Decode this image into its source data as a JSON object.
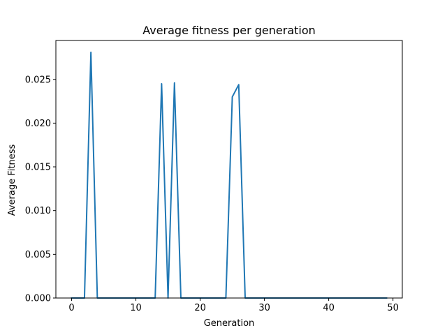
{
  "chart_data": {
    "type": "line",
    "title": "Average fitness per generation",
    "xlabel": "Generation",
    "ylabel": "Average Fitness",
    "xlim": [
      -2.45,
      51.45
    ],
    "ylim": [
      0,
      0.02945
    ],
    "xticks": [
      0,
      10,
      20,
      30,
      40,
      50
    ],
    "xtick_labels": [
      "0",
      "10",
      "20",
      "30",
      "40",
      "50"
    ],
    "yticks": [
      0,
      0.005,
      0.01,
      0.015,
      0.02,
      0.025
    ],
    "ytick_labels": [
      "0.000",
      "0.005",
      "0.010",
      "0.015",
      "0.020",
      "0.025"
    ],
    "grid": false,
    "series": [
      {
        "color": "#1f77b4",
        "x": [
          0,
          1,
          2,
          3,
          4,
          5,
          6,
          7,
          8,
          9,
          10,
          11,
          12,
          13,
          14,
          15,
          16,
          17,
          18,
          19,
          20,
          21,
          22,
          23,
          24,
          25,
          26,
          27,
          28,
          29,
          30,
          31,
          32,
          33,
          34,
          35,
          36,
          37,
          38,
          39,
          40,
          41,
          42,
          43,
          44,
          45,
          46,
          47,
          48,
          49
        ],
        "y": [
          0,
          0,
          0,
          0.0281,
          0,
          0,
          0,
          0,
          0,
          0,
          0,
          0,
          0,
          0,
          0.0245,
          0,
          0.0246,
          0,
          0,
          0,
          0,
          0,
          0,
          0,
          0,
          0.023,
          0.0244,
          0,
          0,
          0,
          0,
          0,
          0,
          0,
          0,
          0,
          0,
          0,
          0,
          0,
          0,
          0,
          0,
          0,
          0,
          0,
          0,
          0,
          0,
          0
        ]
      }
    ]
  }
}
